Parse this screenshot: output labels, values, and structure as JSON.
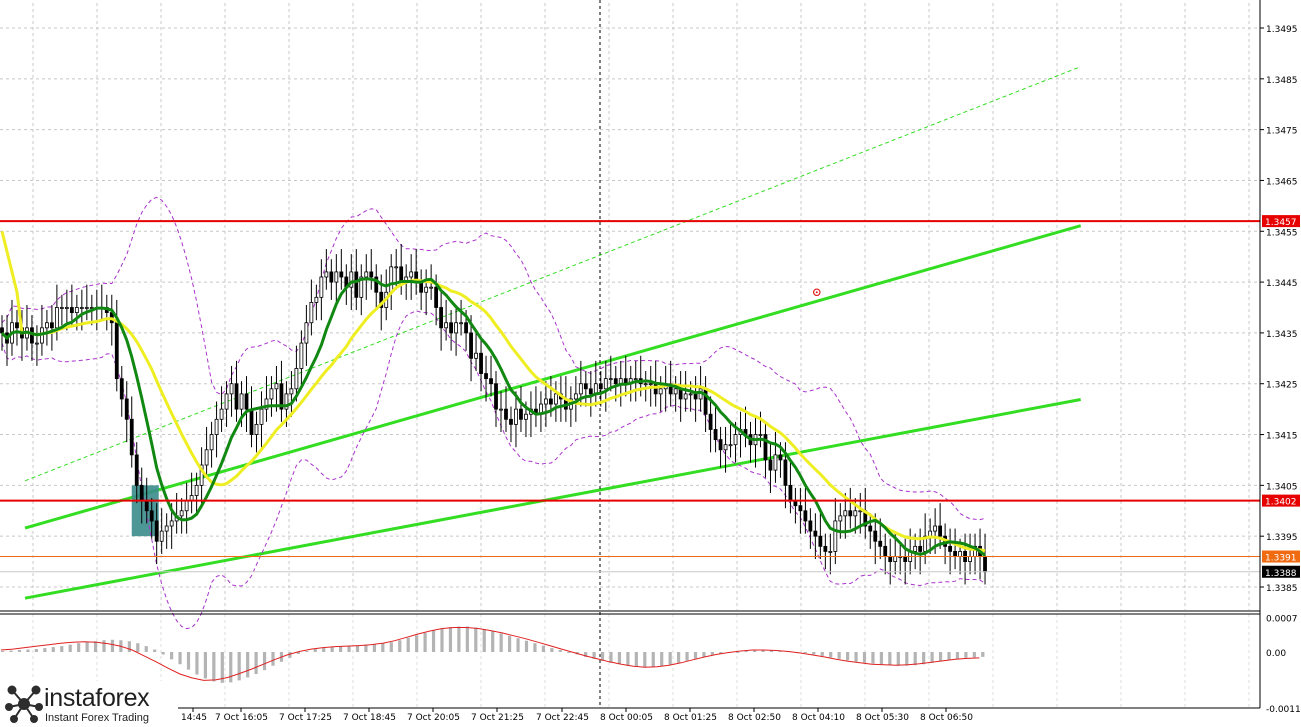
{
  "colors": {
    "bull_trend": "#33dd22",
    "ma_fast": "#118811",
    "ma_slow": "#eeee22",
    "envelope": "#aa33cc",
    "level": "#e60000",
    "bid": "#f06a10",
    "osc_bar": "#b4b4b4",
    "osc_signal": "#e02020",
    "entry_box": "#3a8c8c"
  },
  "logo": {
    "brand": "instaforex",
    "tagline": "Instant Forex Trading",
    "icon": "molecule-icon"
  },
  "chart_data": [
    {
      "type": "candlestick",
      "symbol_pair_chart": "price",
      "ylim": [
        1.3382,
        1.3503
      ],
      "y_ticks": [
        "1.3495",
        "1.3485",
        "1.3475",
        "1.3465",
        "1.3455",
        "1.3445",
        "1.3435",
        "1.3425",
        "1.3415",
        "1.3405",
        "1.3395",
        "1.3385"
      ],
      "x_ticks": [
        "14:45",
        "7 Oct 16:05",
        "7 Oct 17:25",
        "7 Oct 18:45",
        "7 Oct 20:05",
        "7 Oct 21:25",
        "7 Oct 22:45",
        "8 Oct 00:05",
        "8 Oct 01:25",
        "8 Oct 02:50",
        "8 Oct 04:10",
        "8 Oct 05:30",
        "8 Oct 06:50"
      ],
      "grid": true,
      "levels": [
        {
          "label": "1.3457",
          "value": 1.3457
        },
        {
          "label": "1.3402",
          "value": 1.3402
        }
      ],
      "bid_line": {
        "label": "1.3391",
        "value": 1.3391
      },
      "current_price": {
        "label": "1.3388",
        "value": 1.3388
      },
      "session_separator": "8 Oct 00:05",
      "channel": {
        "upper": [
          [
            1,
            1.33966
          ],
          [
            91,
            1.34561
          ]
        ],
        "lower": [
          [
            1,
            1.33828
          ],
          [
            91,
            1.34219
          ]
        ],
        "mid_dashed": [
          [
            1,
            1.34059
          ],
          [
            91,
            1.34874
          ]
        ]
      },
      "entry_zone": {
        "x_from": 10.1,
        "x_to": 12.4,
        "y_from": 1.3395,
        "y_to": 1.3405
      },
      "target_marker": {
        "x": 68.5,
        "y": 1.3443
      },
      "closes": [
        1.3435,
        1.3433,
        1.3437,
        1.3436,
        1.3434,
        1.3436,
        1.3433,
        1.3433,
        1.3436,
        1.3437,
        1.3436,
        1.344,
        1.344,
        1.344,
        1.3439,
        1.344,
        1.344,
        1.344,
        1.344,
        1.344,
        1.344,
        1.3439,
        1.3437,
        1.3426,
        1.3422,
        1.3418,
        1.3411,
        1.3405,
        1.3402,
        1.34,
        1.3398,
        1.3394,
        1.3396,
        1.3397,
        1.3398,
        1.3399,
        1.34,
        1.3402,
        1.3403,
        1.3405,
        1.3409,
        1.3412,
        1.3415,
        1.3418,
        1.342,
        1.3423,
        1.3425,
        1.342,
        1.3423,
        1.342,
        1.3415,
        1.3417,
        1.342,
        1.3422,
        1.3424,
        1.3425,
        1.342,
        1.3423,
        1.3424,
        1.3428,
        1.3433,
        1.3437,
        1.3441,
        1.3442,
        1.3446,
        1.3447,
        1.3445,
        1.3447,
        1.3446,
        1.3444,
        1.3447,
        1.3442,
        1.3446,
        1.3447,
        1.3446,
        1.3443,
        1.344,
        1.3443,
        1.3448,
        1.3448,
        1.3445,
        1.3446,
        1.3447,
        1.3445,
        1.3443,
        1.3444,
        1.3444,
        1.344,
        1.3436,
        1.3437,
        1.3435,
        1.3437,
        1.3437,
        1.3435,
        1.343,
        1.3431,
        1.3427,
        1.3426,
        1.3425,
        1.342,
        1.342,
        1.3418,
        1.3417,
        1.342,
        1.3418,
        1.3419,
        1.342,
        1.3419,
        1.3421,
        1.3422,
        1.3421,
        1.3423,
        1.3422,
        1.342,
        1.3422,
        1.3423,
        1.3425,
        1.3424,
        1.3423,
        1.3425,
        1.3424,
        1.3426,
        1.3426,
        1.3425,
        1.3426,
        1.3425,
        1.3426,
        1.3426,
        1.3425,
        1.3425,
        1.3425,
        1.3423,
        1.3424,
        1.3425,
        1.3423,
        1.3424,
        1.3422,
        1.3423,
        1.3423,
        1.3422,
        1.3424,
        1.3419,
        1.3416,
        1.3414,
        1.3412,
        1.3413,
        1.3413,
        1.3415,
        1.3416,
        1.3415,
        1.3413,
        1.3415,
        1.3415,
        1.341,
        1.3408,
        1.3411,
        1.341,
        1.3405,
        1.3402,
        1.3401,
        1.34,
        1.3398,
        1.3396,
        1.3395,
        1.3393,
        1.3392,
        1.3392,
        1.3398,
        1.3399,
        1.34,
        1.3399,
        1.34,
        1.34,
        1.3397,
        1.3396,
        1.3394,
        1.3393,
        1.3391,
        1.339,
        1.3391,
        1.3391,
        1.339,
        1.3392,
        1.3393,
        1.3392,
        1.3395,
        1.3396,
        1.3397,
        1.3395,
        1.3393,
        1.3392,
        1.3391,
        1.3392,
        1.339,
        1.3391,
        1.3393,
        1.3391,
        1.3388
      ]
    },
    {
      "type": "histogram",
      "indicator": "oscillator",
      "ylim": [
        -0.00114,
        0.00078
      ],
      "y_ticks": [
        "0.0007",
        "0.00",
        "-0.00114"
      ],
      "values": [
        2e-05,
        3e-05,
        4e-05,
        5e-05,
        6e-05,
        8e-05,
        0.0001,
        0.00012,
        0.00015,
        0.00018,
        0.0002,
        0.00022,
        0.00024,
        0.00025,
        0.00024,
        0.00022,
        0.00018,
        0.00012,
        5e-05,
        -5e-05,
        -0.00015,
        -0.00025,
        -0.00036,
        -0.00046,
        -0.00054,
        -0.0006,
        -0.00063,
        -0.00062,
        -0.00058,
        -0.00052,
        -0.00045,
        -0.00037,
        -0.00028,
        -0.0002,
        -0.00012,
        -4e-05,
        2e-05,
        6e-05,
        9e-05,
        0.00011,
        0.00012,
        0.00013,
        0.00014,
        0.00015,
        0.00016,
        0.00018,
        0.0002,
        0.00024,
        0.00029,
        0.00034,
        0.00039,
        0.00044,
        0.00048,
        0.00051,
        0.00052,
        0.00052,
        0.0005,
        0.00047,
        0.00043,
        0.00038,
        0.00033,
        0.00028,
        0.00023,
        0.00018,
        0.00013,
        8e-05,
        4e-05,
        0.0,
        -5e-05,
        -0.0001,
        -0.00014,
        -0.00018,
        -0.00022,
        -0.00025,
        -0.00028,
        -0.0003,
        -0.00031,
        -0.00031,
        -0.00029,
        -0.00026,
        -0.00022,
        -0.00018,
        -0.00014,
        -0.0001,
        -7e-05,
        -4e-05,
        -2e-05,
        0.0,
        2e-05,
        3e-05,
        4e-05,
        4e-05,
        3e-05,
        2e-05,
        0.0,
        -2e-05,
        -5e-05,
        -8e-05,
        -0.00011,
        -0.00014,
        -0.00017,
        -0.0002,
        -0.00022,
        -0.00024,
        -0.00026,
        -0.00027,
        -0.00028,
        -0.00028,
        -0.00027,
        -0.00025,
        -0.00022,
        -0.00019,
        -0.00016,
        -0.00014,
        -0.00012,
        -0.00011,
        -0.0001
      ],
      "signal": [
        4e-05,
        6e-05,
        9e-05,
        0.00012,
        0.00015,
        0.00018,
        0.0002,
        0.00021,
        0.0002,
        0.00017,
        0.00012,
        4e-05,
        -8e-05,
        -0.0002,
        -0.00033,
        -0.00045,
        -0.00053,
        -0.00058,
        -0.00057,
        -0.00052,
        -0.00044,
        -0.00035,
        -0.00025,
        -0.00015,
        -6e-05,
        1e-05,
        6e-05,
        9e-05,
        0.00011,
        0.00012,
        0.00013,
        0.00015,
        0.00018,
        0.00023,
        0.0003,
        0.00037,
        0.00043,
        0.00048,
        0.0005,
        0.0005,
        0.00048,
        0.00044,
        0.00039,
        0.00033,
        0.00027,
        0.0002,
        0.00013,
        6e-05,
        -1e-05,
        -8e-05,
        -0.00014,
        -0.0002,
        -0.00025,
        -0.00029,
        -0.00031,
        -0.0003,
        -0.00027,
        -0.00022,
        -0.00016,
        -0.0001,
        -5e-05,
        -1e-05,
        2e-05,
        4e-05,
        4e-05,
        3e-05,
        1e-05,
        -2e-05,
        -6e-05,
        -0.0001,
        -0.00015,
        -0.00019,
        -0.00022,
        -0.00025,
        -0.00026,
        -0.00027,
        -0.00026,
        -0.00024,
        -0.00021,
        -0.00018,
        -0.00015,
        -0.00013,
        -0.00012
      ]
    }
  ]
}
